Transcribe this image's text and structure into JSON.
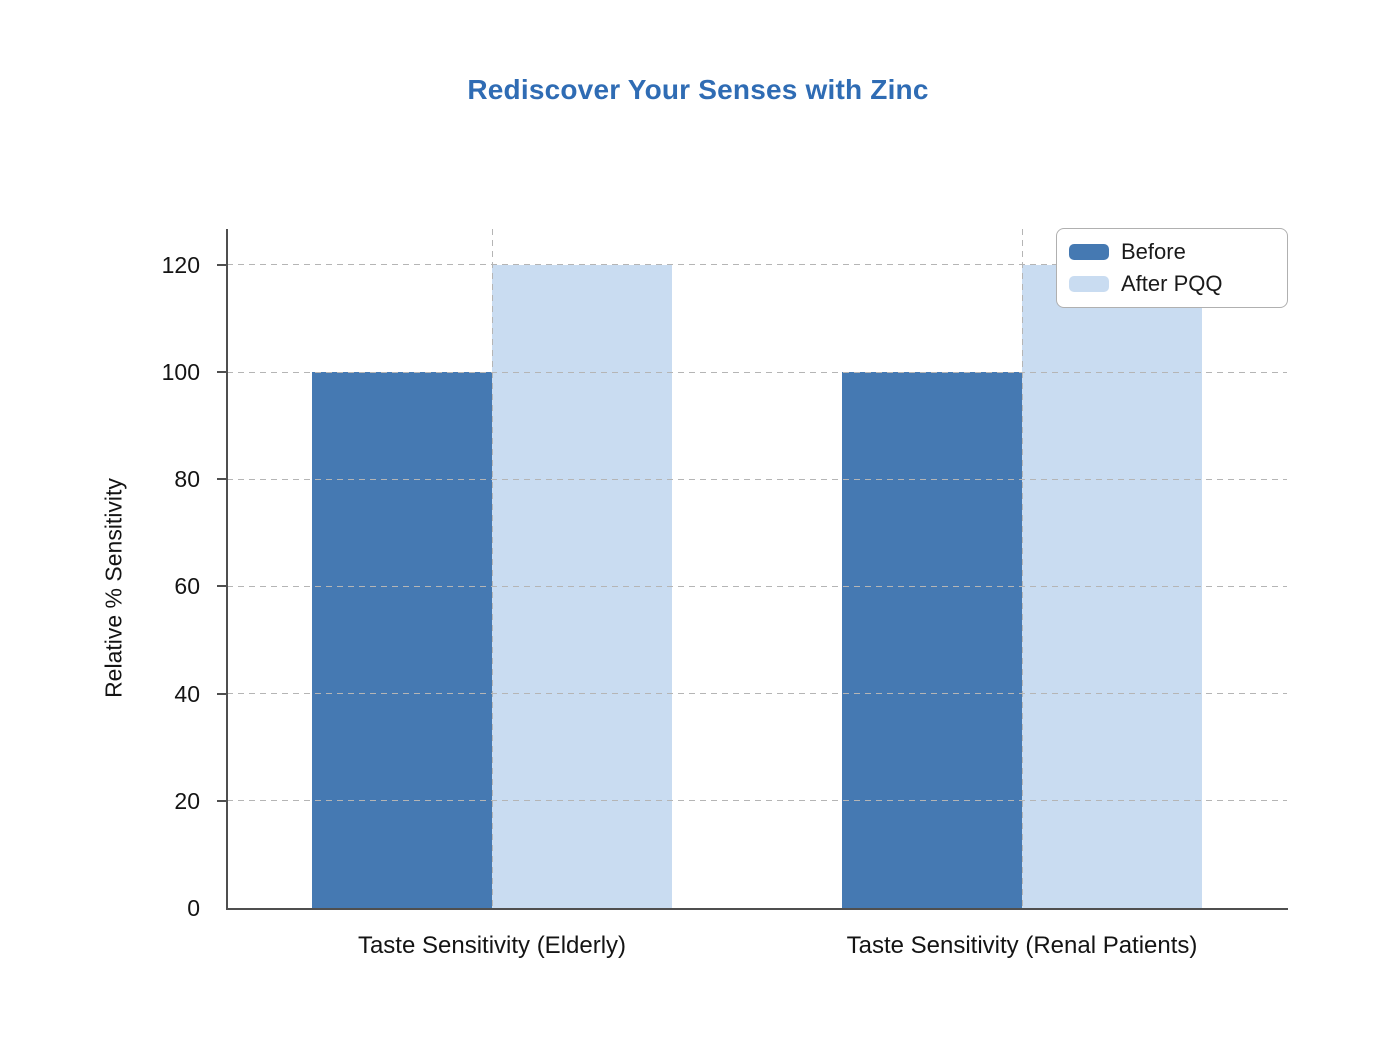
{
  "page": {
    "background": "#ffffff"
  },
  "chart_data": {
    "type": "bar",
    "title": "Rediscover Your Senses with Zinc",
    "title_color": "#2f6cb4",
    "categories": [
      "Taste Sensitivity (Elderly)",
      "Taste Sensitivity (Renal Patients)"
    ],
    "series": [
      {
        "name": "Before",
        "values": [
          100,
          100
        ],
        "color": "#4579b2"
      },
      {
        "name": "After PQQ",
        "values": [
          120,
          120
        ],
        "color": "#c9dcf1"
      }
    ],
    "xlabel": "",
    "ylabel": "Relative % Sensitivity",
    "yticks": [
      0,
      20,
      40,
      60,
      80,
      100,
      120
    ],
    "ylim": [
      0,
      126.7
    ],
    "grid": true,
    "grid_style": "dashed",
    "grid_color": "#b5b5b5",
    "axis_color": "#4f4f4f",
    "tick_label_color": "#141414",
    "legend": {
      "position": "top-right",
      "border_color": "#b0b0b0",
      "background": "#ffffff"
    }
  }
}
